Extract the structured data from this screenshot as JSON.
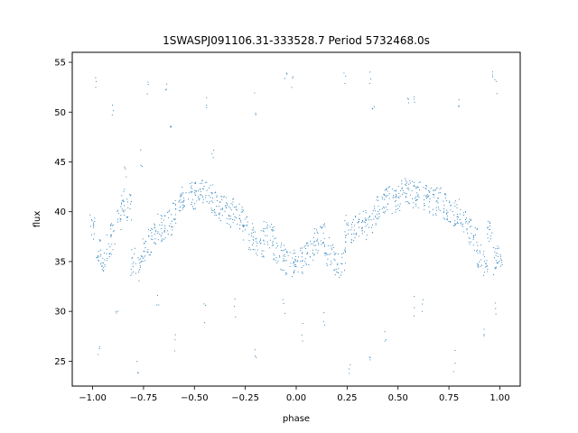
{
  "chart_data": {
    "type": "scatter",
    "title": "1SWASPJ091106.31-333528.7 Period 5732468.0s",
    "xlabel": "phase",
    "ylabel": "flux",
    "xlim": [
      -1.1,
      1.1
    ],
    "ylim": [
      22.5,
      56.0
    ],
    "x_ticks": [
      -1.0,
      -0.75,
      -0.5,
      -0.25,
      0.0,
      0.25,
      0.5,
      0.75,
      1.0
    ],
    "x_tick_labels": [
      "−1.00",
      "−0.75",
      "−0.50",
      "−0.25",
      "0.00",
      "0.25",
      "0.50",
      "0.75",
      "1.00"
    ],
    "y_ticks": [
      25,
      30,
      35,
      40,
      45,
      50,
      55
    ],
    "y_tick_labels": [
      "25",
      "30",
      "35",
      "40",
      "45",
      "50",
      "55"
    ],
    "grid": false,
    "legend": "none",
    "marker_color": "#1f77b4",
    "series": [
      {
        "x": [
          -1.0,
          -0.97,
          -0.95,
          -0.92,
          -0.9,
          -0.87,
          -0.85,
          -0.82,
          -0.8,
          -0.77,
          -0.75,
          -0.72,
          -0.7,
          -0.67,
          -0.65,
          -0.62,
          -0.6,
          -0.57,
          -0.55,
          -0.52,
          -0.5,
          -0.47,
          -0.45,
          -0.42,
          -0.4,
          -0.37,
          -0.35,
          -0.32,
          -0.3,
          -0.27,
          -0.25,
          -0.22,
          -0.2,
          -0.17,
          -0.15,
          -0.12,
          -0.1,
          -0.07,
          -0.05,
          -0.02,
          0.0,
          0.03,
          0.05,
          0.08,
          0.1,
          0.13,
          0.15,
          0.18,
          0.2,
          0.23,
          0.25,
          0.28,
          0.3,
          0.33,
          0.35,
          0.38,
          0.4,
          0.43,
          0.45,
          0.48,
          0.5,
          0.53,
          0.55,
          0.58,
          0.6,
          0.63,
          0.65,
          0.68,
          0.7,
          0.73,
          0.75,
          0.78,
          0.8,
          0.83,
          0.85,
          0.88,
          0.9,
          0.93,
          0.95,
          0.98,
          1.0
        ],
        "y": [
          38.5,
          36.0,
          34.8,
          36.5,
          37.5,
          39.5,
          41.0,
          40.5,
          35.0,
          34.2,
          36.2,
          37.0,
          38.0,
          38.5,
          38.3,
          39.0,
          39.8,
          40.8,
          41.5,
          41.8,
          41.6,
          41.9,
          42.2,
          41.3,
          41.0,
          40.5,
          40.2,
          39.8,
          40.0,
          39.6,
          38.5,
          37.5,
          37.0,
          36.8,
          38.0,
          37.5,
          36.0,
          35.5,
          35.0,
          34.8,
          35.0,
          35.2,
          35.5,
          36.5,
          37.0,
          37.5,
          36.0,
          35.5,
          34.5,
          35.0,
          38.3,
          38.0,
          38.5,
          39.0,
          38.6,
          39.2,
          40.2,
          40.8,
          41.3,
          41.0,
          41.5,
          42.0,
          42.0,
          41.8,
          41.7,
          41.5,
          41.2,
          41.0,
          41.3,
          40.5,
          40.2,
          39.8,
          40.0,
          39.0,
          38.0,
          37.0,
          35.5,
          35.0,
          38.2,
          35.0,
          35.5
        ]
      },
      {
        "x": [
          -0.98,
          -0.9,
          -0.84,
          -0.76,
          -0.73,
          -0.64,
          -0.62,
          -0.44,
          -0.41,
          -0.2,
          -0.05,
          -0.02,
          0.24,
          0.36,
          0.38,
          0.55,
          0.58,
          0.8,
          0.96,
          0.98
        ],
        "y": [
          52.8,
          49.5,
          44.2,
          45.3,
          52.5,
          53.0,
          48.0,
          50.3,
          45.0,
          50.8,
          53.5,
          52.5,
          53.7,
          53.6,
          49.5,
          50.2,
          52.0,
          50.8,
          53.5,
          52.8
        ]
      },
      {
        "x": [
          -0.97,
          -0.88,
          -0.78,
          -0.68,
          -0.6,
          -0.45,
          -0.3,
          -0.2,
          -0.06,
          0.03,
          0.14,
          0.26,
          0.36,
          0.44,
          0.58,
          0.62,
          0.78,
          0.92,
          0.98
        ],
        "y": [
          26.0,
          29.0,
          24.2,
          30.5,
          27.0,
          30.0,
          30.3,
          25.2,
          31.0,
          28.0,
          29.5,
          24.5,
          26.0,
          27.0,
          30.5,
          31.0,
          25.0,
          28.0,
          30.0
        ]
      }
    ]
  }
}
